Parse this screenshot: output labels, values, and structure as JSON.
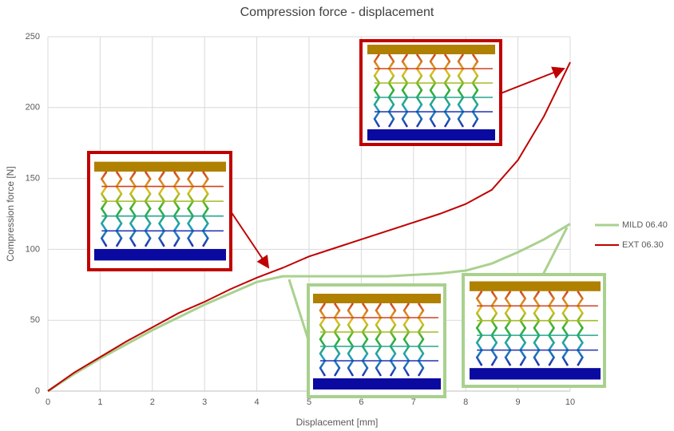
{
  "chart_data": {
    "type": "line",
    "title": "Compression force - displacement",
    "x_label": "Displacement [mm]",
    "y_label": "Compression force [N]",
    "x": [
      0,
      0.5,
      1,
      1.5,
      2,
      2.5,
      3,
      3.5,
      4,
      4.5,
      5,
      5.5,
      6,
      6.5,
      7,
      7.5,
      8,
      8.5,
      9,
      9.5,
      10
    ],
    "series": [
      {
        "name": "MILD 06.40",
        "color": "#a9d18e",
        "values": [
          0,
          12,
          23,
          33,
          43,
          52,
          61,
          69,
          77,
          81,
          81,
          81,
          81,
          81,
          82,
          83,
          85,
          90,
          98,
          107,
          118
        ]
      },
      {
        "name": "EXT 06.30",
        "color": "#c00000",
        "values": [
          0,
          13,
          24,
          35,
          45,
          55,
          63,
          72,
          80,
          87,
          95,
          101,
          107,
          113,
          119,
          125,
          132,
          142,
          163,
          194,
          232
        ]
      }
    ],
    "xlim": [
      0,
      10
    ],
    "xticks": [
      0,
      1,
      2,
      3,
      4,
      5,
      6,
      7,
      8,
      9,
      10
    ],
    "ylim": [
      0,
      250
    ],
    "yticks": [
      0,
      50,
      100,
      150,
      200,
      250
    ],
    "grid": true,
    "legend": "right"
  }
}
